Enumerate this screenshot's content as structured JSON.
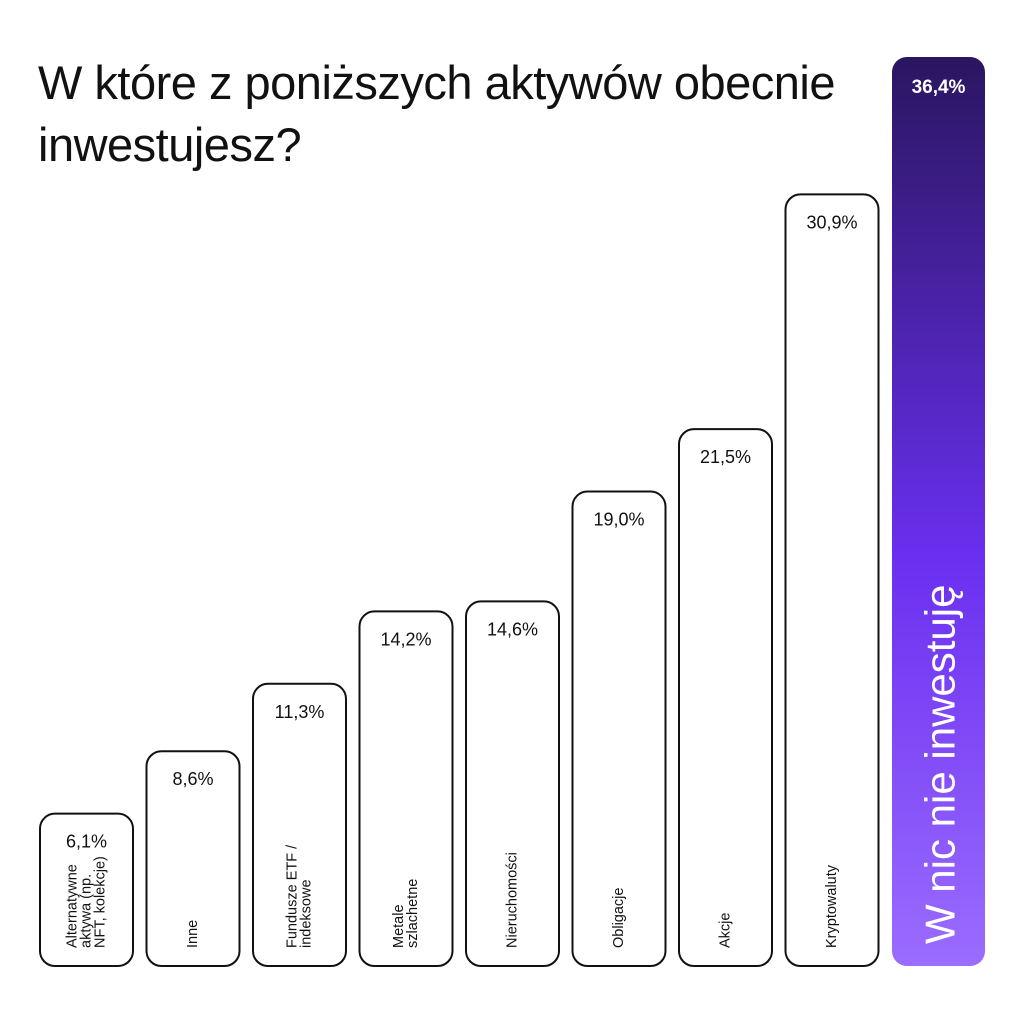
{
  "title": "W które z poniższych aktywów obecnie inwestujesz?",
  "colors": {
    "bar_stroke": "#111111",
    "bar_fill": "#ffffff",
    "highlight_top": "#2a1660",
    "highlight_mid": "#6a2ff0",
    "highlight_bottom": "#9b6cff",
    "text": "#111111",
    "highlight_text": "#ffffff"
  },
  "chart_data": {
    "type": "bar",
    "ylim": [
      0,
      36.4
    ],
    "categories": [
      [
        "Alternatywne",
        "aktywa (np.",
        "NFT, kolekcje)"
      ],
      [
        "Inne"
      ],
      [
        "Fundusze ETF /",
        "indeksowe"
      ],
      [
        "Metale",
        "szlachetne"
      ],
      [
        "Nieruchomości"
      ],
      [
        "Obligacje"
      ],
      [
        "Akcje"
      ],
      [
        "Kryptowaluty"
      ],
      [
        "W nic nie inwestuję"
      ]
    ],
    "values": [
      6.1,
      8.6,
      11.3,
      14.2,
      14.6,
      19.0,
      21.5,
      30.9,
      36.4
    ],
    "value_labels": [
      "6,1%",
      "8,6%",
      "11,3%",
      "14,2%",
      "14,6%",
      "19,0%",
      "21,5%",
      "30,9%",
      "36,4%"
    ],
    "highlight_index": 8
  }
}
